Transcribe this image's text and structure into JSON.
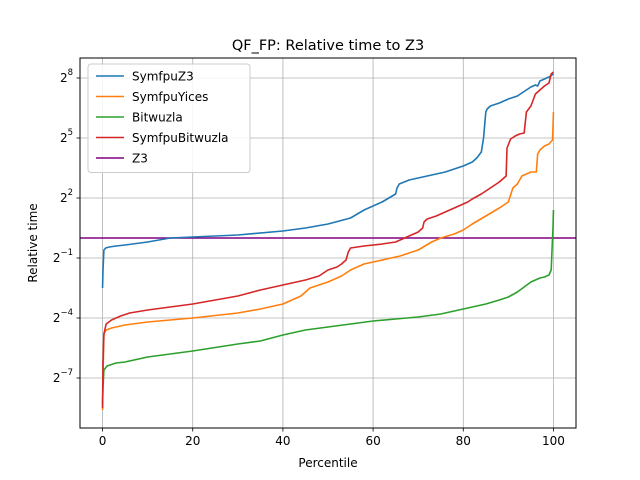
{
  "chart_data": {
    "type": "line",
    "title": "QF_FP: Relative time to Z3",
    "xlabel": "Percentile",
    "ylabel": "Relative time",
    "xlim": [
      -5,
      105
    ],
    "ylim_log2": [
      -9.5,
      9
    ],
    "yscale": "log2",
    "grid": true,
    "legend_position": "top-left",
    "xticks": [
      0,
      20,
      40,
      60,
      80,
      100
    ],
    "yticks": [
      {
        "base": "2",
        "exp": "−7",
        "value_log2": -7
      },
      {
        "base": "2",
        "exp": "−4",
        "value_log2": -4
      },
      {
        "base": "2",
        "exp": "−1",
        "value_log2": -1
      },
      {
        "base": "2",
        "exp": "2",
        "value_log2": 2
      },
      {
        "base": "2",
        "exp": "5",
        "value_log2": 5
      },
      {
        "base": "2",
        "exp": "8",
        "value_log2": 8
      }
    ],
    "series": [
      {
        "name": "SymfpuZ3",
        "color": "#1f77b4",
        "x": [
          0,
          0.1,
          0.3,
          0.7,
          1.5,
          3,
          5,
          10,
          15,
          20,
          30,
          40,
          45,
          50,
          55,
          58,
          62,
          65,
          65.3,
          65.8,
          68,
          72,
          76,
          80,
          82,
          83,
          84,
          84.5,
          84.8,
          85,
          85.3,
          86,
          88,
          90,
          92,
          93,
          94,
          95,
          96,
          96.5,
          97,
          98,
          99,
          100
        ],
        "y_log2": [
          -2.5,
          -1.6,
          -0.6,
          -0.5,
          -0.45,
          -0.4,
          -0.35,
          -0.2,
          0,
          0.05,
          0.15,
          0.35,
          0.5,
          0.7,
          1.0,
          1.4,
          1.8,
          2.2,
          2.5,
          2.7,
          2.9,
          3.1,
          3.3,
          3.6,
          3.8,
          4.0,
          4.3,
          5.0,
          5.8,
          6.3,
          6.45,
          6.6,
          6.75,
          6.95,
          7.1,
          7.25,
          7.4,
          7.55,
          7.65,
          7.6,
          7.85,
          7.95,
          8.05,
          8.2
        ]
      },
      {
        "name": "SymfpuYices",
        "color": "#ff7f0e",
        "x": [
          0,
          0.1,
          0.3,
          0.8,
          2,
          5,
          10,
          20,
          30,
          35,
          40,
          44,
          46,
          50,
          53,
          55,
          58,
          60,
          63,
          66,
          70,
          73,
          75,
          78,
          80,
          82,
          85,
          88,
          90,
          91,
          92,
          93,
          94,
          95,
          96.2,
          96.5,
          97,
          98,
          99,
          99.8,
          100
        ],
        "y_log2": [
          -8.6,
          -6.8,
          -4.8,
          -4.6,
          -4.5,
          -4.35,
          -4.2,
          -4.0,
          -3.75,
          -3.55,
          -3.3,
          -2.9,
          -2.5,
          -2.2,
          -1.9,
          -1.6,
          -1.3,
          -1.2,
          -1.05,
          -0.9,
          -0.6,
          -0.2,
          0,
          0.2,
          0.4,
          0.7,
          1.1,
          1.5,
          1.8,
          2.5,
          2.7,
          3.1,
          3.2,
          3.3,
          3.3,
          4.2,
          4.4,
          4.6,
          4.7,
          4.9,
          6.3
        ]
      },
      {
        "name": "Bitwuzla",
        "color": "#2ca02c",
        "x": [
          0,
          0.1,
          0.3,
          1,
          3,
          5,
          10,
          20,
          30,
          35,
          40,
          45,
          50,
          55,
          60,
          65,
          70,
          75,
          80,
          85,
          88,
          90,
          92,
          95,
          97,
          98,
          99,
          99.5,
          99.7,
          99.9,
          100
        ],
        "y_log2": [
          -8.3,
          -7.5,
          -6.6,
          -6.4,
          -6.25,
          -6.2,
          -5.95,
          -5.65,
          -5.3,
          -5.15,
          -4.85,
          -4.6,
          -4.45,
          -4.3,
          -4.15,
          -4.05,
          -3.95,
          -3.8,
          -3.55,
          -3.3,
          -3.1,
          -2.95,
          -2.7,
          -2.2,
          -2.0,
          -1.95,
          -1.85,
          -1.6,
          -0.5,
          0.5,
          1.4
        ]
      },
      {
        "name": "SymfpuBitwuzla",
        "color": "#d62728",
        "x": [
          0,
          0.1,
          0.3,
          0.8,
          2,
          4,
          6,
          10,
          15,
          20,
          25,
          30,
          35,
          40,
          45,
          48,
          50,
          52,
          53,
          54,
          54.5,
          55,
          58,
          62,
          65,
          67,
          70,
          71,
          71.3,
          72,
          74,
          76,
          79,
          81,
          82,
          84,
          85,
          86,
          88,
          89.5,
          89.7,
          90.5,
          91.5,
          92.5,
          93.5,
          94,
          95,
          96,
          97,
          98,
          99,
          99.5,
          100
        ],
        "y_log2": [
          -8.5,
          -6.2,
          -4.8,
          -4.3,
          -4.1,
          -3.9,
          -3.75,
          -3.6,
          -3.45,
          -3.3,
          -3.1,
          -2.9,
          -2.6,
          -2.35,
          -2.1,
          -1.9,
          -1.6,
          -1.45,
          -1.3,
          -1.1,
          -0.7,
          -0.5,
          -0.4,
          -0.3,
          -0.2,
          0,
          0.3,
          0.5,
          0.8,
          0.95,
          1.1,
          1.3,
          1.6,
          1.8,
          1.95,
          2.2,
          2.35,
          2.5,
          2.8,
          3.1,
          4.5,
          4.95,
          5.1,
          5.2,
          5.25,
          6.3,
          6.6,
          7.2,
          7.4,
          7.6,
          7.75,
          8.2,
          8.3
        ]
      },
      {
        "name": "Z3",
        "color": "#800080",
        "x": [
          -5,
          105
        ],
        "y_log2": [
          0,
          0
        ]
      }
    ]
  }
}
